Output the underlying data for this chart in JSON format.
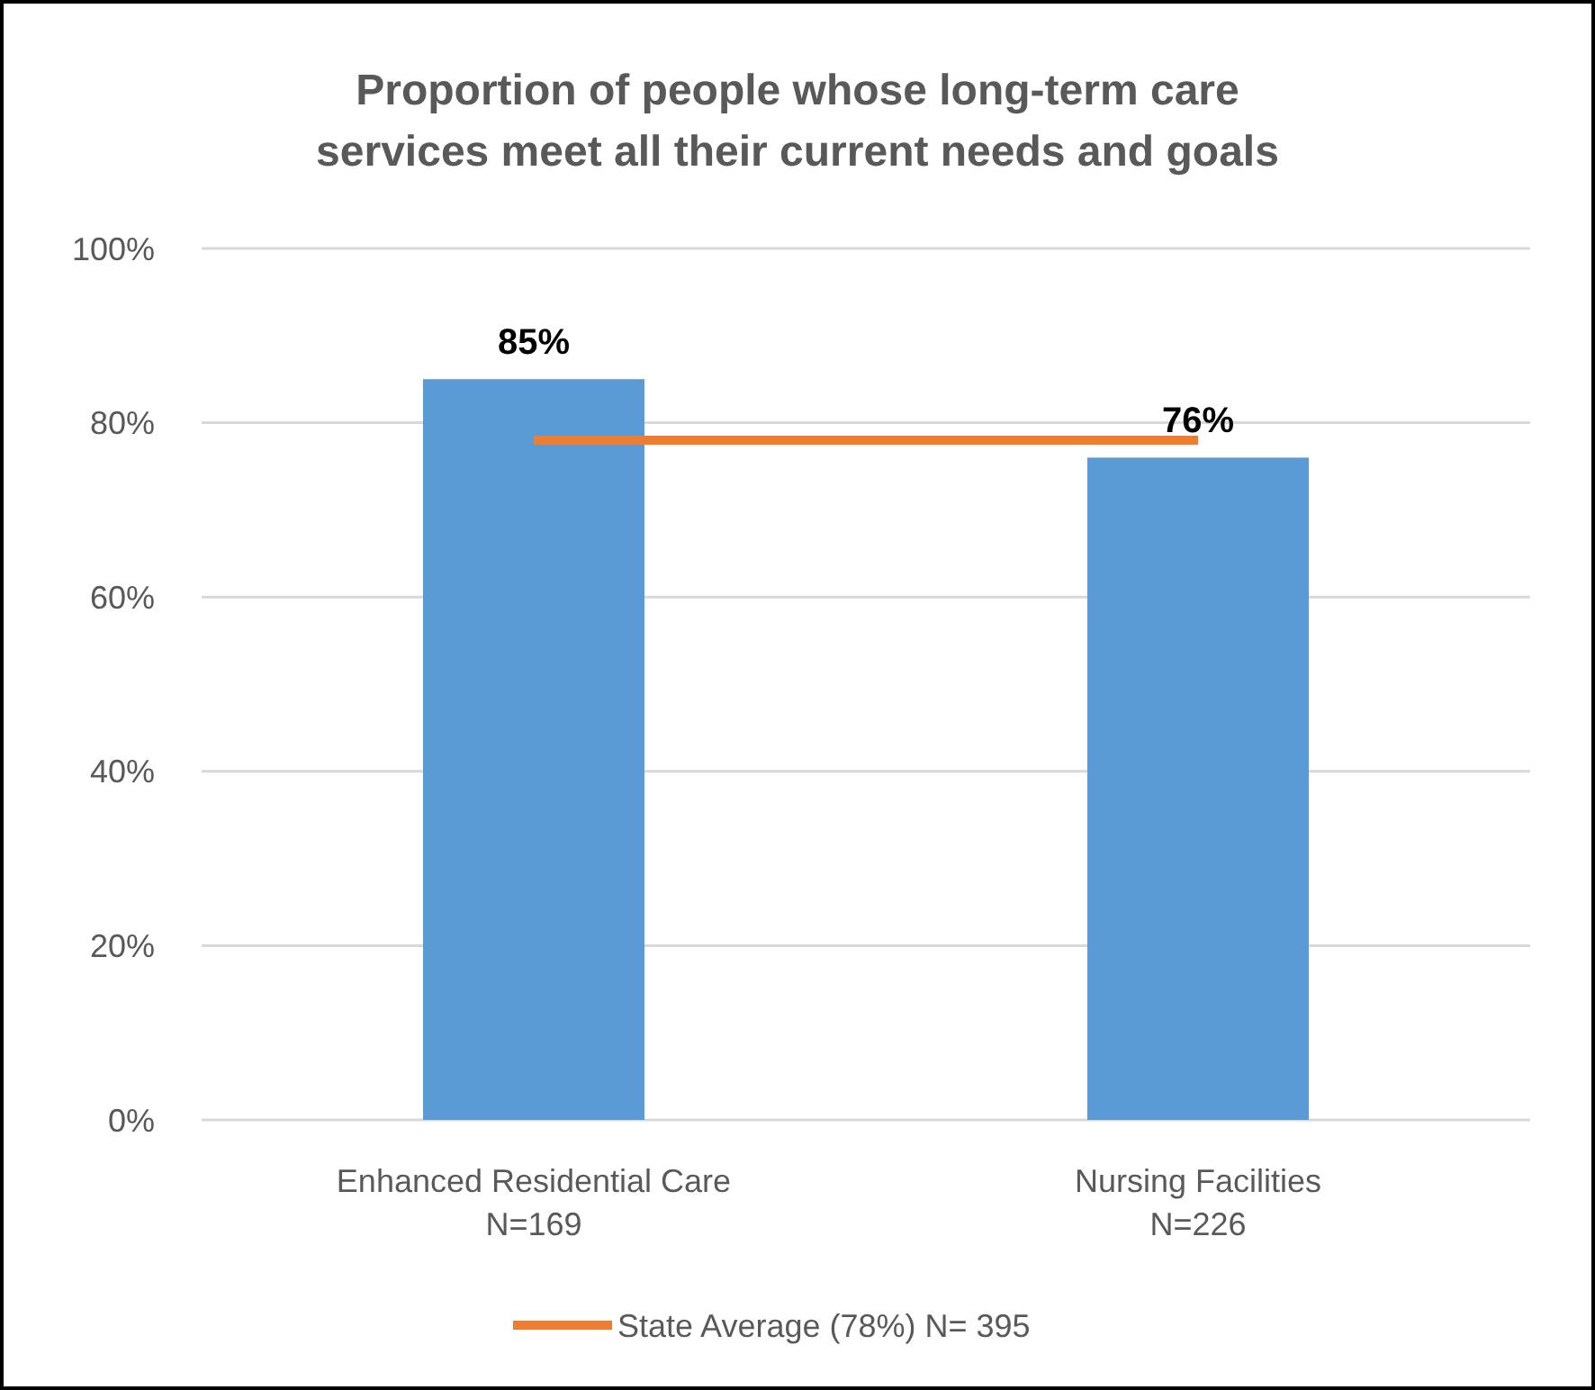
{
  "chart_data": {
    "type": "bar",
    "title": "Proportion of people whose long-term care\nservices meet all their current needs and goals",
    "categories": [
      "Enhanced Residential Care\nN=169",
      "Nursing Facilities\nN=226"
    ],
    "series": [
      {
        "color": "#5b9bd5",
        "values": [
          85,
          76
        ],
        "value_labels": [
          "85%",
          "76%"
        ]
      },
      {
        "type": "line",
        "name": "State Average (78%) N= 395",
        "color": "#ed7d31",
        "values": [
          78,
          78
        ],
        "marker": "none"
      }
    ],
    "ylim": [
      0,
      100
    ],
    "yticks": [
      {
        "value": 0,
        "label": "0%"
      },
      {
        "value": 20,
        "label": "20%"
      },
      {
        "value": 40,
        "label": "40%"
      },
      {
        "value": 60,
        "label": "60%"
      },
      {
        "value": 80,
        "label": "80%"
      },
      {
        "value": 100,
        "label": "100%"
      }
    ],
    "grid": "y",
    "legend": "bottom"
  }
}
